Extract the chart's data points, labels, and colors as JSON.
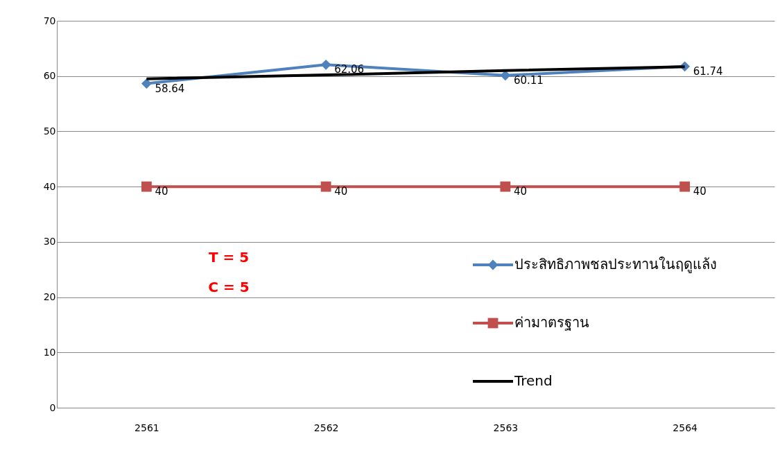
{
  "chart_data": {
    "type": "line",
    "categories": [
      "2561",
      "2562",
      "2563",
      "2564"
    ],
    "series": [
      {
        "name": "ประสิทธิภาพชลประทานในฤดูแล้ง",
        "color": "#4f81bd",
        "marker": "diamond",
        "values": [
          58.64,
          62.06,
          60.11,
          61.74
        ],
        "value_labels": [
          "58.64",
          "62.06",
          "60.11",
          "61.74"
        ]
      },
      {
        "name": "ค่ามาตรฐาน",
        "color": "#c0504d",
        "marker": "square",
        "values": [
          40,
          40,
          40,
          40
        ],
        "value_labels": [
          "40",
          "40",
          "40",
          "40"
        ]
      },
      {
        "name": "Trend",
        "type": "line",
        "color": "#000000",
        "marker": "none",
        "values": [
          59.5,
          60.2,
          61.0,
          61.7
        ]
      }
    ],
    "ylim": [
      0,
      70
    ],
    "yticks": [
      0,
      10,
      20,
      30,
      40,
      50,
      60,
      70
    ],
    "grid": "y",
    "legend": "right",
    "annotations": [
      "T = 5",
      "C = 5"
    ]
  }
}
